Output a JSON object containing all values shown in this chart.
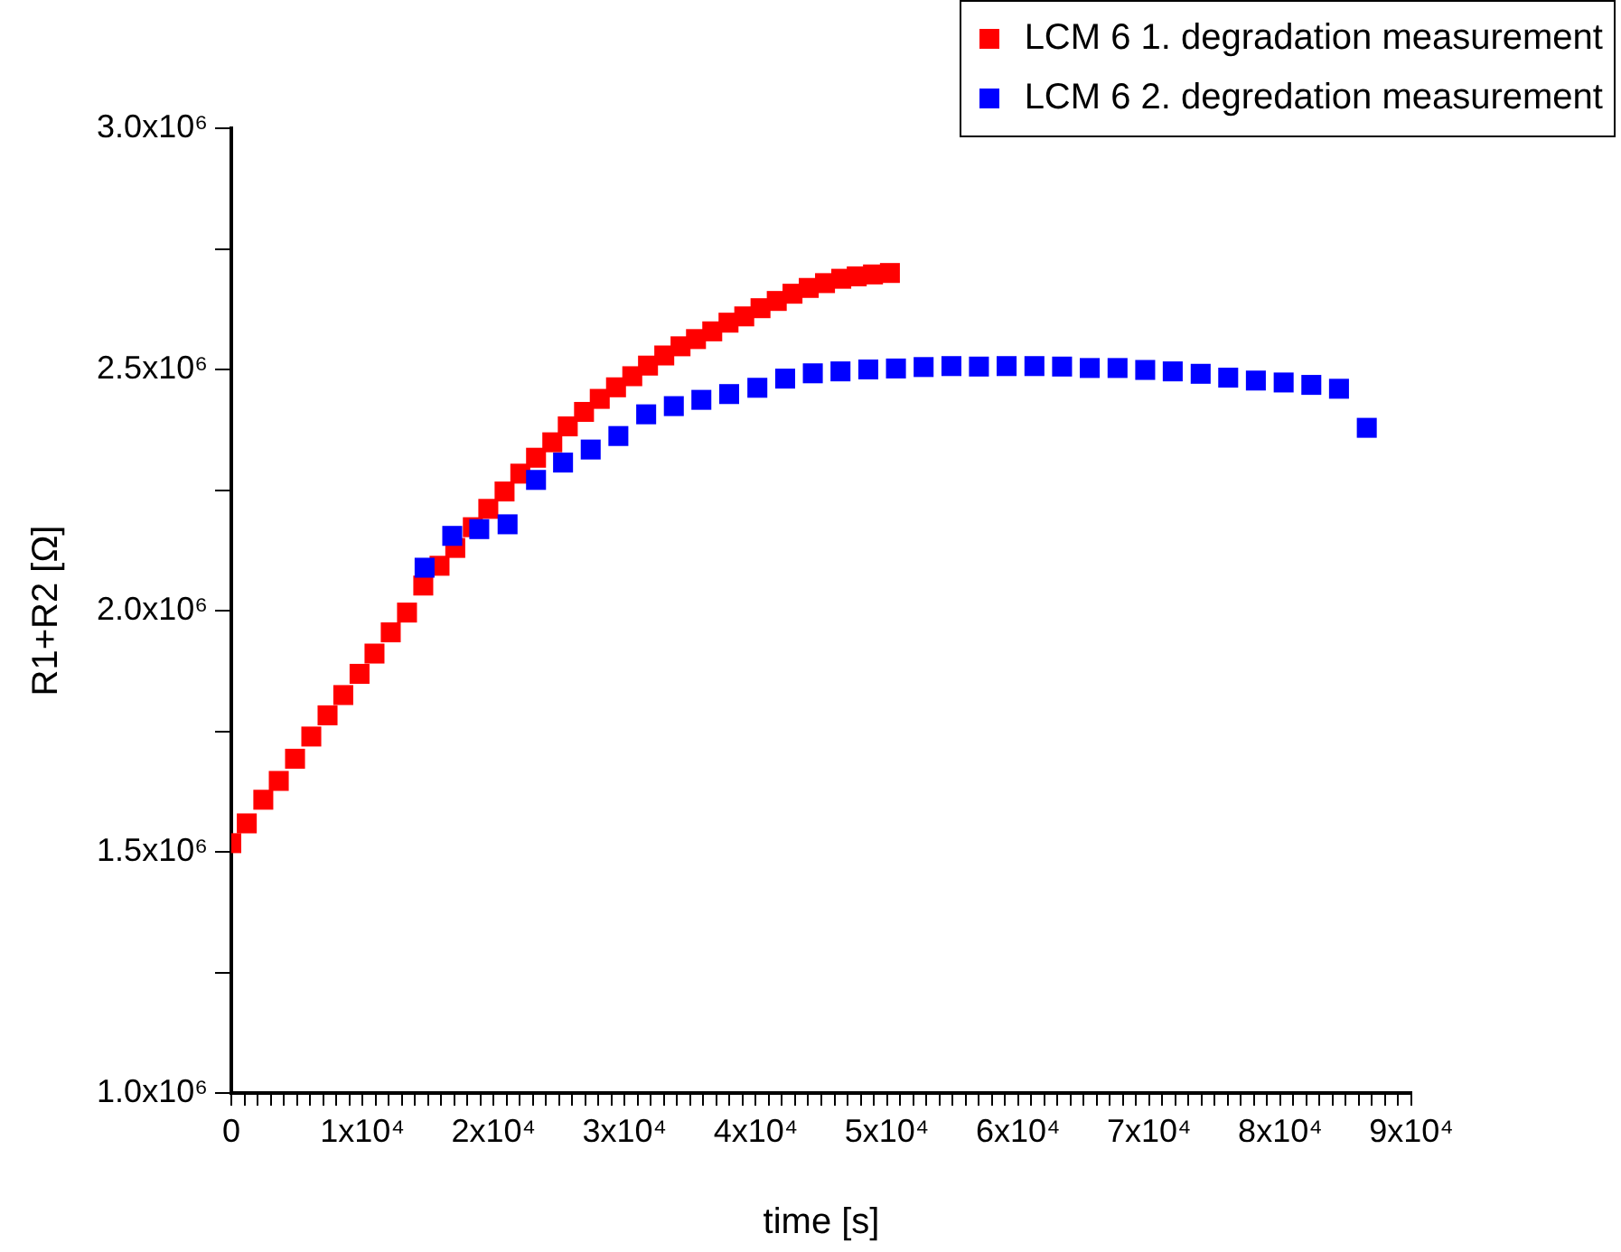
{
  "chart_data": {
    "type": "scatter",
    "xlabel": "time [s]",
    "ylabel": "R1+R2 [Ω]",
    "legend": "top right",
    "marker": "square",
    "grid": false,
    "xlim": [
      0,
      90000
    ],
    "ylim": [
      1000000,
      3000000
    ],
    "xticks": [
      {
        "value": 0,
        "label": "0"
      },
      {
        "value": 1000,
        "label": null
      },
      {
        "value": 2000,
        "label": null
      },
      {
        "value": 3000,
        "label": null
      },
      {
        "value": 4000,
        "label": null
      },
      {
        "value": 5000,
        "label": null
      },
      {
        "value": 6000,
        "label": null
      },
      {
        "value": 7000,
        "label": null
      },
      {
        "value": 8000,
        "label": null
      },
      {
        "value": 9000,
        "label": null
      },
      {
        "value": 10000,
        "label": "1x10⁴"
      },
      {
        "value": 11000,
        "label": null
      },
      {
        "value": 12000,
        "label": null
      },
      {
        "value": 13000,
        "label": null
      },
      {
        "value": 14000,
        "label": null
      },
      {
        "value": 15000,
        "label": null
      },
      {
        "value": 16000,
        "label": null
      },
      {
        "value": 17000,
        "label": null
      },
      {
        "value": 18000,
        "label": null
      },
      {
        "value": 19000,
        "label": null
      },
      {
        "value": 20000,
        "label": "2x10⁴"
      },
      {
        "value": 21000,
        "label": null
      },
      {
        "value": 22000,
        "label": null
      },
      {
        "value": 23000,
        "label": null
      },
      {
        "value": 24000,
        "label": null
      },
      {
        "value": 25000,
        "label": null
      },
      {
        "value": 26000,
        "label": null
      },
      {
        "value": 27000,
        "label": null
      },
      {
        "value": 28000,
        "label": null
      },
      {
        "value": 29000,
        "label": null
      },
      {
        "value": 30000,
        "label": "3x10⁴"
      },
      {
        "value": 31000,
        "label": null
      },
      {
        "value": 32000,
        "label": null
      },
      {
        "value": 33000,
        "label": null
      },
      {
        "value": 34000,
        "label": null
      },
      {
        "value": 35000,
        "label": null
      },
      {
        "value": 36000,
        "label": null
      },
      {
        "value": 37000,
        "label": null
      },
      {
        "value": 38000,
        "label": null
      },
      {
        "value": 39000,
        "label": null
      },
      {
        "value": 40000,
        "label": "4x10⁴"
      },
      {
        "value": 41000,
        "label": null
      },
      {
        "value": 42000,
        "label": null
      },
      {
        "value": 43000,
        "label": null
      },
      {
        "value": 44000,
        "label": null
      },
      {
        "value": 45000,
        "label": null
      },
      {
        "value": 46000,
        "label": null
      },
      {
        "value": 47000,
        "label": null
      },
      {
        "value": 48000,
        "label": null
      },
      {
        "value": 49000,
        "label": null
      },
      {
        "value": 50000,
        "label": "5x10⁴"
      },
      {
        "value": 51000,
        "label": null
      },
      {
        "value": 52000,
        "label": null
      },
      {
        "value": 53000,
        "label": null
      },
      {
        "value": 54000,
        "label": null
      },
      {
        "value": 55000,
        "label": null
      },
      {
        "value": 56000,
        "label": null
      },
      {
        "value": 57000,
        "label": null
      },
      {
        "value": 58000,
        "label": null
      },
      {
        "value": 59000,
        "label": null
      },
      {
        "value": 60000,
        "label": "6x10⁴"
      },
      {
        "value": 61000,
        "label": null
      },
      {
        "value": 62000,
        "label": null
      },
      {
        "value": 63000,
        "label": null
      },
      {
        "value": 64000,
        "label": null
      },
      {
        "value": 65000,
        "label": null
      },
      {
        "value": 66000,
        "label": null
      },
      {
        "value": 67000,
        "label": null
      },
      {
        "value": 68000,
        "label": null
      },
      {
        "value": 69000,
        "label": null
      },
      {
        "value": 70000,
        "label": "7x10⁴"
      },
      {
        "value": 71000,
        "label": null
      },
      {
        "value": 72000,
        "label": null
      },
      {
        "value": 73000,
        "label": null
      },
      {
        "value": 74000,
        "label": null
      },
      {
        "value": 75000,
        "label": null
      },
      {
        "value": 76000,
        "label": null
      },
      {
        "value": 77000,
        "label": null
      },
      {
        "value": 78000,
        "label": null
      },
      {
        "value": 79000,
        "label": null
      },
      {
        "value": 80000,
        "label": "8x10⁴"
      },
      {
        "value": 81000,
        "label": null
      },
      {
        "value": 82000,
        "label": null
      },
      {
        "value": 83000,
        "label": null
      },
      {
        "value": 84000,
        "label": null
      },
      {
        "value": 85000,
        "label": null
      },
      {
        "value": 86000,
        "label": null
      },
      {
        "value": 87000,
        "label": null
      },
      {
        "value": 88000,
        "label": null
      },
      {
        "value": 89000,
        "label": null
      },
      {
        "value": 90000,
        "label": "9x10⁴"
      }
    ],
    "yticks": [
      {
        "value": 1000000,
        "label": "1.0x10⁶"
      },
      {
        "value": 1250000,
        "label": null
      },
      {
        "value": 1500000,
        "label": "1.5x10⁶"
      },
      {
        "value": 1750000,
        "label": null
      },
      {
        "value": 2000000,
        "label": "2.0x10⁶"
      },
      {
        "value": 2250000,
        "label": null
      },
      {
        "value": 2500000,
        "label": "2.5x10⁶"
      },
      {
        "value": 2750000,
        "label": null
      },
      {
        "value": 3000000,
        "label": "3.0x10⁶"
      }
    ],
    "series": [
      {
        "name": "LCM 6 1. degradation measurement",
        "color": "#ff0000",
        "x": [
          0,
          1180,
          2440,
          3620,
          4860,
          6100,
          7340,
          8540,
          9780,
          10920,
          12160,
          13400,
          14640,
          15880,
          17080,
          18420,
          19600,
          20840,
          22040,
          23240,
          24480,
          25660,
          26900,
          28100,
          29340,
          30580,
          31780,
          33020,
          34260,
          35440,
          36680,
          37920,
          39120,
          40360,
          41600,
          42800,
          44040,
          45280,
          46520,
          47700,
          48940,
          50230
        ],
        "values": [
          1518000,
          1559000,
          1608000,
          1647000,
          1693000,
          1739000,
          1783000,
          1825000,
          1869000,
          1911000,
          1955000,
          1996000,
          2052000,
          2093000,
          2130000,
          2173000,
          2211000,
          2247000,
          2284000,
          2317000,
          2349000,
          2382000,
          2412000,
          2439000,
          2463000,
          2486000,
          2508000,
          2529000,
          2548000,
          2563000,
          2579000,
          2597000,
          2610000,
          2627000,
          2642000,
          2657000,
          2669000,
          2679000,
          2688000,
          2693000,
          2697000,
          2700000
        ]
      },
      {
        "name": "LCM 6 2. degredation measurement",
        "color": "#0000ff",
        "x": [
          14740,
          16850,
          18910,
          21070,
          23240,
          25300,
          27410,
          29520,
          31640,
          33750,
          35850,
          37970,
          40120,
          42240,
          44350,
          46460,
          48580,
          50690,
          52800,
          54920,
          57020,
          59130,
          61250,
          63360,
          65470,
          67590,
          69700,
          71800,
          73930,
          76030,
          78140,
          80260,
          82370,
          84480,
          86600
        ],
        "values": [
          2089000,
          2155000,
          2169000,
          2179000,
          2271000,
          2307000,
          2334000,
          2362000,
          2407000,
          2424000,
          2437000,
          2449000,
          2462000,
          2481000,
          2492000,
          2496000,
          2500000,
          2502000,
          2505000,
          2507000,
          2506000,
          2507000,
          2507000,
          2506000,
          2503000,
          2503000,
          2499000,
          2496000,
          2491000,
          2483000,
          2477000,
          2473000,
          2468000,
          2460000,
          2379000
        ]
      }
    ]
  }
}
